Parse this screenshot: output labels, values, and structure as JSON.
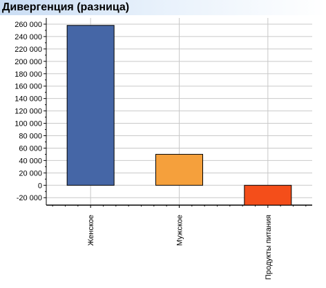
{
  "panel": {
    "title": "Дивергенция (разница)"
  },
  "chart_data": {
    "type": "bar",
    "title": "Дивергенция (разница)",
    "xlabel": "",
    "ylabel": "",
    "categories": [
      "Женское",
      "Мужское",
      "Продукты питания"
    ],
    "values": [
      258000,
      50000,
      -32000
    ],
    "bar_colors": [
      "#4566a6",
      "#f5a03c",
      "#f44e1a"
    ],
    "ylim": [
      -32000,
      270000
    ],
    "y_ticks": [
      -20000,
      0,
      20000,
      40000,
      60000,
      80000,
      100000,
      120000,
      140000,
      160000,
      180000,
      200000,
      220000,
      240000,
      260000
    ],
    "y_tick_labels": [
      "-20 000",
      "0",
      "20 000",
      "40 000",
      "60 000",
      "80 000",
      "100 000",
      "120 000",
      "140 000",
      "160 000",
      "180 000",
      "200 000",
      "220 000",
      "240 000",
      "260 000"
    ],
    "grid": true,
    "legend": "none"
  }
}
